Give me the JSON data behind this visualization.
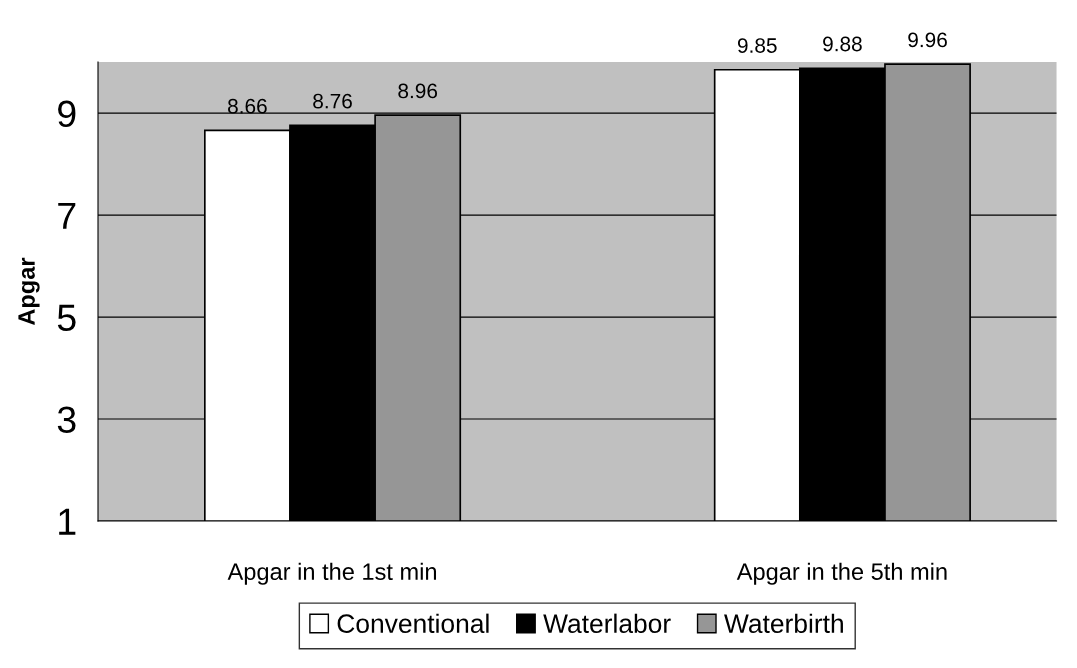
{
  "chart_data": {
    "type": "bar",
    "ylabel": "Apgar",
    "categories": [
      "Apgar in the 1st min",
      "Apgar in the 5th min"
    ],
    "series": [
      {
        "name": "Conventional",
        "color": "#ffffff",
        "values": [
          8.66,
          9.85
        ]
      },
      {
        "name": "Waterlabor",
        "color": "#000000",
        "values": [
          8.76,
          9.88
        ]
      },
      {
        "name": "Waterbirth",
        "color": "#969696",
        "values": [
          8.96,
          9.96
        ]
      }
    ],
    "ylim": [
      1,
      10
    ],
    "yticks": [
      1,
      3,
      5,
      7,
      9
    ],
    "grid": "y",
    "legend": "bottom",
    "data_labels": true
  }
}
